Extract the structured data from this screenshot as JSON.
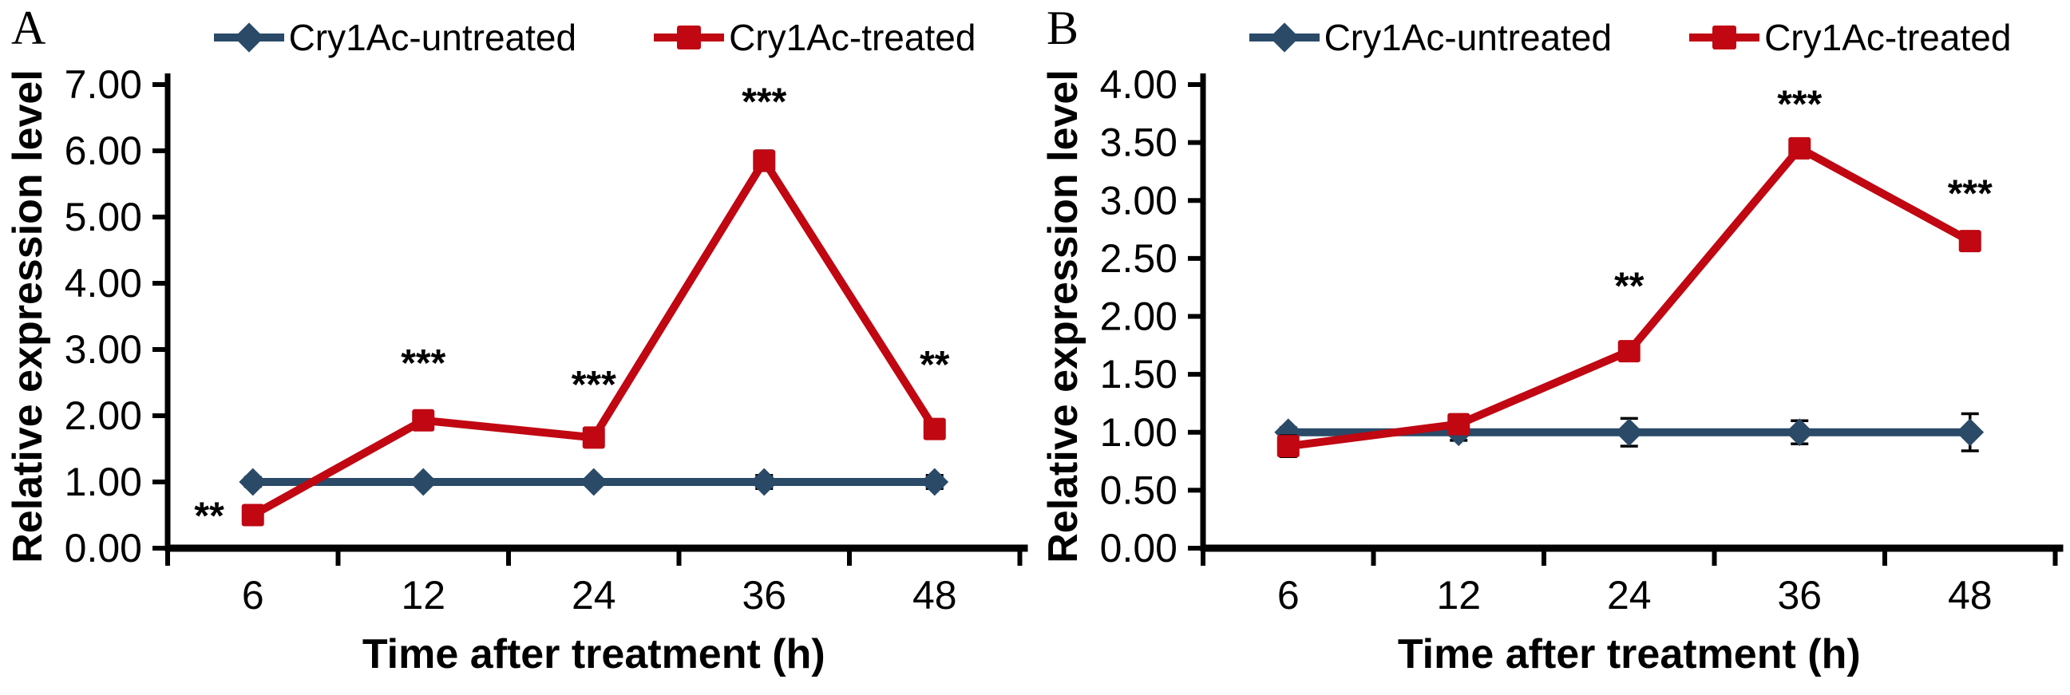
{
  "colors": {
    "untreated": "#2A4A68",
    "treated": "#C00712",
    "axis": "#000000",
    "error_bar": "#000000",
    "text": "#000000",
    "background": "#FFFFFF"
  },
  "chart_data": [
    {
      "type": "line",
      "panel_label": "A",
      "title": "",
      "xlabel": "Time after treatment (h)",
      "ylabel": "Relative expression level",
      "categories": [
        "6",
        "12",
        "24",
        "36",
        "48"
      ],
      "x_unit_hours": [
        6,
        12,
        24,
        36,
        48
      ],
      "ylim": [
        0,
        7
      ],
      "ytick_step": 1.0,
      "ytick_labels": [
        "0.00",
        "1.00",
        "2.00",
        "3.00",
        "4.00",
        "5.00",
        "6.00",
        "7.00"
      ],
      "grid": false,
      "legend_position": "top",
      "series": [
        {
          "name": "Cry1Ac-untreated",
          "marker": "diamond",
          "color": "#2A4A68",
          "values": [
            1.0,
            1.0,
            1.0,
            1.0,
            1.0
          ],
          "errors": [
            0.07,
            0.05,
            0.05,
            0.1,
            0.1
          ]
        },
        {
          "name": "Cry1Ac-treated",
          "marker": "square",
          "color": "#C00712",
          "values": [
            0.5,
            1.93,
            1.67,
            5.85,
            1.8
          ],
          "errors": [
            0.05,
            0.1,
            0.05,
            0.15,
            0.13
          ]
        }
      ],
      "annotations": [
        {
          "text": "**",
          "category_index": 0,
          "y": 0.5,
          "placement": "left"
        },
        {
          "text": "***",
          "category_index": 1,
          "y": 2.6,
          "placement": "above"
        },
        {
          "text": "***",
          "category_index": 2,
          "y": 2.28,
          "placement": "above"
        },
        {
          "text": "***",
          "category_index": 3,
          "y": 6.55,
          "placement": "above"
        },
        {
          "text": "**",
          "category_index": 4,
          "y": 2.58,
          "placement": "above"
        }
      ]
    },
    {
      "type": "line",
      "panel_label": "B",
      "title": "",
      "xlabel": "Time after treatment (h)",
      "ylabel": "Relative expression level",
      "categories": [
        "6",
        "12",
        "24",
        "36",
        "48"
      ],
      "x_unit_hours": [
        6,
        12,
        24,
        36,
        48
      ],
      "ylim": [
        0,
        4
      ],
      "ytick_step": 0.5,
      "ytick_labels": [
        "0.00",
        "0.50",
        "1.00",
        "1.50",
        "2.00",
        "2.50",
        "3.00",
        "3.50",
        "4.00"
      ],
      "grid": false,
      "legend_position": "top",
      "series": [
        {
          "name": "Cry1Ac-untreated",
          "marker": "diamond",
          "color": "#2A4A68",
          "values": [
            1.0,
            1.0,
            1.0,
            1.0,
            1.0
          ],
          "errors": [
            0.04,
            0.07,
            0.12,
            0.1,
            0.16
          ]
        },
        {
          "name": "Cry1Ac-treated",
          "marker": "square",
          "color": "#C00712",
          "values": [
            0.88,
            1.07,
            1.7,
            3.45,
            2.65
          ],
          "errors": [
            0.09,
            0.05,
            0.06,
            0.05,
            0.05
          ]
        }
      ],
      "annotations": [
        {
          "text": "**",
          "category_index": 2,
          "y": 2.15,
          "placement": "above"
        },
        {
          "text": "***",
          "category_index": 3,
          "y": 3.72,
          "placement": "above"
        },
        {
          "text": "***",
          "category_index": 4,
          "y": 2.95,
          "placement": "above"
        }
      ]
    }
  ]
}
